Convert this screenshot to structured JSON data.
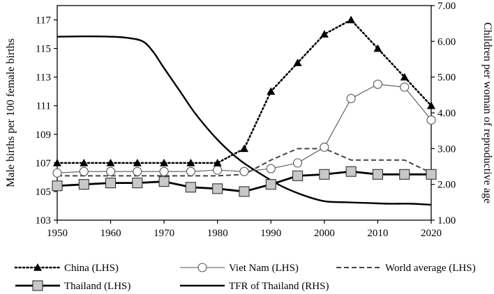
{
  "chart_data": {
    "type": "line",
    "x": [
      1950,
      1955,
      1960,
      1965,
      1970,
      1975,
      1980,
      1985,
      1990,
      1995,
      2000,
      2005,
      2010,
      2015,
      2020
    ],
    "xlim": [
      1950,
      2020
    ],
    "x_ticks": [
      1950,
      1960,
      1970,
      1980,
      1990,
      2000,
      2010,
      2020
    ],
    "ylabel": "Male births per 100 female births",
    "ylim": [
      103,
      118
    ],
    "y_ticks": [
      103,
      105,
      107,
      109,
      111,
      113,
      115,
      117
    ],
    "y2label": "Children per woman of reproductive age",
    "y2lim": [
      1.0,
      7.0
    ],
    "y2_ticks": [
      "1.00",
      "2.00",
      "3.00",
      "4.00",
      "5.00",
      "6.00",
      "7.00"
    ],
    "grid": false,
    "legend_position": "bottom",
    "series": [
      {
        "name": "China (LHS)",
        "axis": "left",
        "style": "dotted-triangle",
        "color": "#000000",
        "values": [
          107,
          107,
          107,
          107,
          107,
          107,
          107,
          108,
          112,
          114,
          116,
          117,
          115,
          113,
          111
        ]
      },
      {
        "name": "Viet Nam (LHS)",
        "axis": "left",
        "style": "thin-circle",
        "color": "#555555",
        "values": [
          106.3,
          106.4,
          106.4,
          106.4,
          106.4,
          106.4,
          106.5,
          106.4,
          106.6,
          107.0,
          108.1,
          111.5,
          112.5,
          112.3,
          110.0
        ]
      },
      {
        "name": "World average (LHS)",
        "axis": "left",
        "style": "dashed",
        "color": "#444444",
        "values": [
          106.1,
          106.1,
          106.1,
          106.1,
          106.1,
          106.1,
          106.1,
          106.2,
          107.2,
          108.0,
          108.0,
          107.2,
          107.2,
          107.2,
          106.3
        ]
      },
      {
        "name": "Thailand (LHS)",
        "axis": "left",
        "style": "thick-square",
        "color": "#000000",
        "values": [
          105.4,
          105.5,
          105.6,
          105.6,
          105.7,
          105.3,
          105.2,
          105.0,
          105.5,
          106.1,
          106.2,
          106.4,
          106.2,
          106.2,
          106.2
        ]
      },
      {
        "name": "TFR of Thailand (RHS)",
        "axis": "right",
        "style": "thick-line",
        "color": "#000000",
        "x": [
          1950,
          1955,
          1960,
          1963,
          1966,
          1968,
          1970,
          1973,
          1976,
          1980,
          1984,
          1988,
          1992,
          1996,
          2000,
          2004,
          2008,
          2012,
          2016,
          2020
        ],
        "values": [
          6.13,
          6.14,
          6.13,
          6.1,
          6.0,
          5.7,
          5.25,
          4.6,
          3.95,
          3.25,
          2.7,
          2.3,
          1.95,
          1.7,
          1.53,
          1.5,
          1.48,
          1.46,
          1.46,
          1.43
        ]
      }
    ]
  }
}
